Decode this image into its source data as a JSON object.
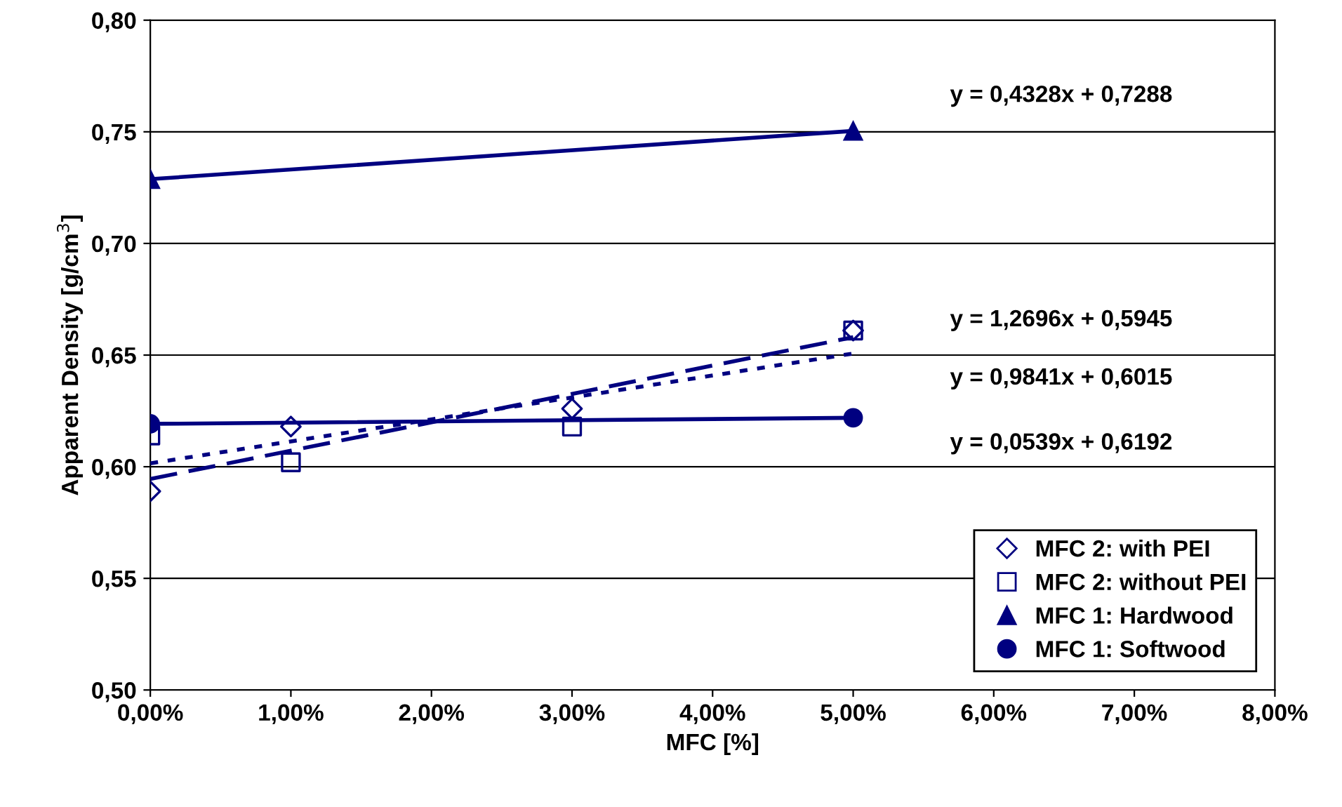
{
  "chart_data": {
    "type": "scatter",
    "xlabel": "MFC [%]",
    "ylabel": "Apparent Density [g/cm$^{3}$]",
    "xlim": [
      0,
      0.08
    ],
    "ylim": [
      0.5,
      0.8
    ],
    "xticks": [
      {
        "value": 0,
        "label": "0,00%"
      },
      {
        "value": 0.01,
        "label": "1,00%"
      },
      {
        "value": 0.02,
        "label": "2,00%"
      },
      {
        "value": 0.03,
        "label": "3,00%"
      },
      {
        "value": 0.04,
        "label": "4,00%"
      },
      {
        "value": 0.05,
        "label": "5,00%"
      },
      {
        "value": 0.06,
        "label": "6,00%"
      },
      {
        "value": 0.07,
        "label": "7,00%"
      },
      {
        "value": 0.08,
        "label": "8,00%"
      }
    ],
    "yticks": [
      {
        "value": 0.5,
        "label": "0,50"
      },
      {
        "value": 0.55,
        "label": "0,55"
      },
      {
        "value": 0.6,
        "label": "0,60"
      },
      {
        "value": 0.65,
        "label": "0,65"
      },
      {
        "value": 0.7,
        "label": "0,70"
      },
      {
        "value": 0.75,
        "label": "0,75"
      },
      {
        "value": 0.8,
        "label": "0,80"
      }
    ],
    "grid": "y",
    "legend": "bottom right",
    "series": [
      {
        "name": "MFC 2: with PEI",
        "marker": "diamond",
        "color": "#000080",
        "x": [
          0,
          0.01,
          0.03,
          0.05
        ],
        "values": [
          0.589,
          0.618,
          0.626,
          0.661
        ]
      },
      {
        "name": "MFC 2: without PEI",
        "marker": "square",
        "color": "#000080",
        "x": [
          0,
          0.01,
          0.03,
          0.05
        ],
        "values": [
          0.614,
          0.602,
          0.618,
          0.661
        ]
      },
      {
        "name": "MFC 1: Hardwood",
        "type": "line",
        "marker": "triangle",
        "line_style": "solid",
        "color": "#000080",
        "x": [
          0,
          0.05
        ],
        "values": [
          0.7288,
          0.7504
        ]
      },
      {
        "name": "MFC 1: Softwood",
        "type": "line",
        "marker": "circle",
        "line_style": "solid",
        "color": "#000080",
        "x": [
          0,
          0.05
        ],
        "values": [
          0.6192,
          0.6219
        ]
      },
      {
        "type": "line",
        "marker": "none",
        "line_style": "dashed",
        "color": "#000080",
        "x": [
          0,
          0.05
        ],
        "values": [
          0.5945,
          0.658
        ]
      },
      {
        "type": "line",
        "marker": "none",
        "line_style": "dotted",
        "color": "#000080",
        "x": [
          0,
          0.05
        ],
        "values": [
          0.6015,
          0.6507
        ]
      }
    ],
    "annotations": [
      "y = 0,4328x + 0,7288",
      "y = 1,2696x + 0,5945",
      "y = 0,9841x + 0,6015",
      "y = 0,0539x + 0,6192"
    ]
  }
}
